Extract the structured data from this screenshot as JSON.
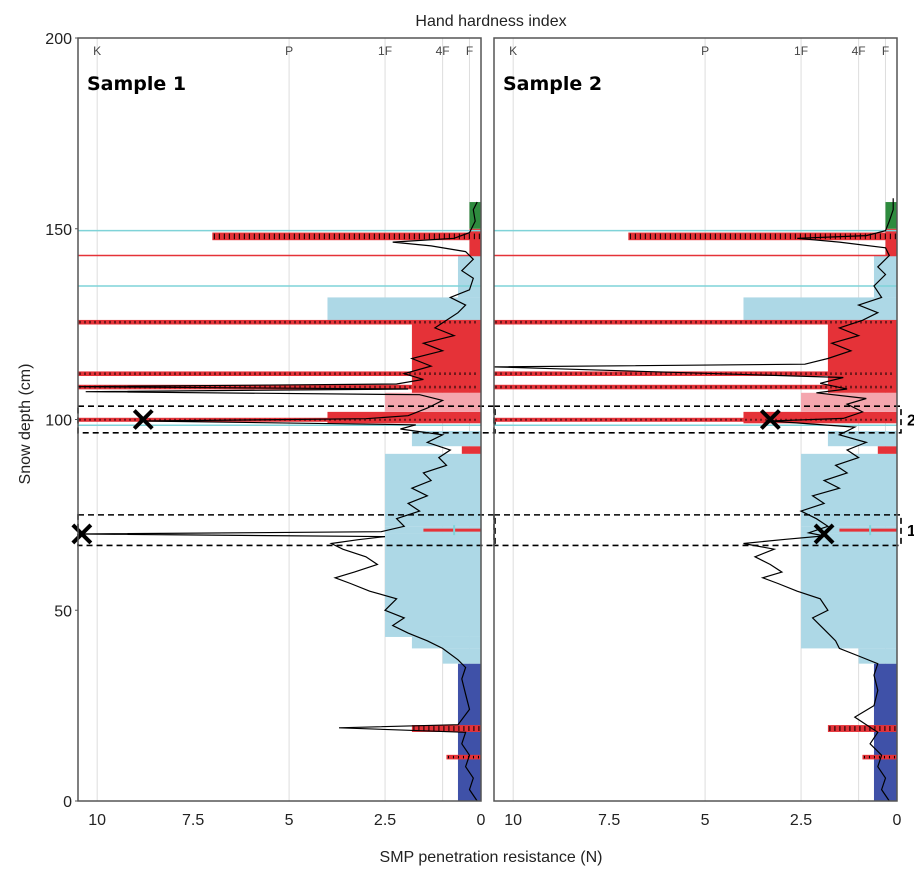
{
  "colors": {
    "melt_form": "#e53238",
    "melt_form_light": "#f4a6ae",
    "rounded": "#add8e6",
    "depth_hoar": "#3f51a8",
    "new_snow": "#2e8b3e",
    "surface_hoar": "#7fd3d8",
    "profile": "#000000",
    "grid": "#dddddd",
    "frame": "#555555"
  },
  "chart_data": [
    {
      "type": "line",
      "panel_title": "Sample 1",
      "title": "Hand hardness index",
      "xlabel": "SMP penetration resistance (N)",
      "ylabel": "Snow depth (cm)",
      "xlim": [
        10.5,
        0
      ],
      "ylim": [
        0,
        200
      ],
      "x_ticks": [
        "10",
        "7.5",
        "5",
        "2.5",
        "0"
      ],
      "y_ticks": [
        "0",
        "50",
        "100",
        "150",
        "200"
      ],
      "hardness_ticks": [
        "K",
        "P",
        "1F",
        "4F",
        "F"
      ],
      "hardness_tick_values": [
        10,
        5,
        2.5,
        1,
        0.3
      ],
      "layers": [
        {
          "bottom": 0,
          "top": 36,
          "hardness": 0.6,
          "type": "depth_hoar"
        },
        {
          "bottom": 36,
          "top": 40,
          "hardness": 1.0,
          "type": "rounded"
        },
        {
          "bottom": 40,
          "top": 43,
          "hardness": 1.8,
          "type": "rounded"
        },
        {
          "bottom": 43,
          "top": 70,
          "hardness": 2.5,
          "type": "rounded"
        },
        {
          "bottom": 70,
          "top": 72,
          "hardness": 2.5,
          "type": "rounded"
        },
        {
          "bottom": 72,
          "top": 91,
          "hardness": 2.5,
          "type": "rounded"
        },
        {
          "bottom": 91,
          "top": 93,
          "hardness": 0.5,
          "type": "melt_form"
        },
        {
          "bottom": 93,
          "top": 97,
          "hardness": 1.8,
          "type": "rounded"
        },
        {
          "bottom": 99,
          "top": 102,
          "hardness": 4.0,
          "type": "melt_form"
        },
        {
          "bottom": 102,
          "top": 107,
          "hardness": 2.5,
          "type": "melt_form_light"
        },
        {
          "bottom": 107,
          "top": 126,
          "hardness": 1.8,
          "type": "melt_form"
        },
        {
          "bottom": 126,
          "top": 132,
          "hardness": 4.0,
          "type": "rounded"
        },
        {
          "bottom": 132,
          "top": 143,
          "hardness": 0.6,
          "type": "rounded"
        },
        {
          "bottom": 143,
          "top": 150,
          "hardness": 0.3,
          "type": "melt_form"
        },
        {
          "bottom": 150,
          "top": 157,
          "hardness": 0.3,
          "type": "new_snow"
        }
      ],
      "ice_layers": [
        {
          "depth": 148,
          "hardness": 7.0,
          "thickness": 2
        },
        {
          "depth": 125.5,
          "hardness": 10.5,
          "thickness": 1.2
        },
        {
          "depth": 112,
          "hardness": 10.5,
          "thickness": 1.2
        },
        {
          "depth": 108.5,
          "hardness": 10.5,
          "thickness": 1.2
        },
        {
          "depth": 100,
          "hardness": 10.5,
          "thickness": 0.9
        },
        {
          "depth": 19,
          "hardness": 1.8,
          "thickness": 1.8
        },
        {
          "depth": 11.5,
          "hardness": 0.9,
          "thickness": 1.2
        }
      ],
      "thin_lines": [
        {
          "depth": 149.5,
          "type": "surface_hoar"
        },
        {
          "depth": 143,
          "type": "melt_form"
        },
        {
          "depth": 135,
          "type": "surface_hoar"
        },
        {
          "depth": 98.5,
          "type": "surface_hoar"
        },
        {
          "depth": 71,
          "type": "melt_form_short"
        }
      ],
      "markers": [
        {
          "x": 8.8,
          "y": 100
        },
        {
          "x": 10.4,
          "y": 70
        }
      ],
      "zones": [
        {
          "bottom": 96.5,
          "top": 103.5,
          "label": ""
        },
        {
          "bottom": 67,
          "top": 75,
          "label": ""
        }
      ],
      "profile": [
        [
          0.1,
          0
        ],
        [
          0.3,
          3
        ],
        [
          0.2,
          6
        ],
        [
          0.4,
          9
        ],
        [
          0.3,
          12
        ],
        [
          0.5,
          15
        ],
        [
          0.4,
          18
        ],
        [
          3.7,
          19.2
        ],
        [
          0.6,
          20
        ],
        [
          0.3,
          24
        ],
        [
          0.4,
          28
        ],
        [
          0.5,
          32
        ],
        [
          0.4,
          35
        ],
        [
          0.6,
          37
        ],
        [
          1.0,
          40
        ],
        [
          1.4,
          42
        ],
        [
          1.9,
          44
        ],
        [
          2.3,
          46
        ],
        [
          2.0,
          48
        ],
        [
          2.5,
          50
        ],
        [
          2.2,
          53
        ],
        [
          2.9,
          55
        ],
        [
          3.4,
          57
        ],
        [
          3.8,
          58.5
        ],
        [
          3.3,
          60
        ],
        [
          2.7,
          62
        ],
        [
          3.0,
          64
        ],
        [
          3.6,
          66
        ],
        [
          3.9,
          67.5
        ],
        [
          3.2,
          68.5
        ],
        [
          2.5,
          69.3
        ],
        [
          10.4,
          70
        ],
        [
          2.6,
          70.6
        ],
        [
          2.0,
          72
        ],
        [
          2.2,
          74
        ],
        [
          1.6,
          76
        ],
        [
          1.9,
          78
        ],
        [
          1.4,
          80
        ],
        [
          1.8,
          82
        ],
        [
          1.3,
          84
        ],
        [
          1.5,
          86
        ],
        [
          0.9,
          88
        ],
        [
          1.1,
          90
        ],
        [
          0.8,
          92
        ],
        [
          1.4,
          94
        ],
        [
          1.0,
          96
        ],
        [
          2.1,
          97.5
        ],
        [
          1.7,
          98.6
        ],
        [
          8.8,
          99.6
        ],
        [
          3.0,
          100.2
        ],
        [
          1.9,
          101
        ],
        [
          1.4,
          103
        ],
        [
          1.0,
          105
        ],
        [
          1.6,
          106.5
        ],
        [
          10.3,
          107.3
        ],
        [
          1.9,
          108
        ],
        [
          10.5,
          108.6
        ],
        [
          2.2,
          109.3
        ],
        [
          1.5,
          110.5
        ],
        [
          2.0,
          112
        ],
        [
          1.3,
          114
        ],
        [
          1.8,
          116
        ],
        [
          1.0,
          118
        ],
        [
          1.5,
          120
        ],
        [
          0.7,
          122
        ],
        [
          1.2,
          124
        ],
        [
          0.9,
          126
        ],
        [
          0.6,
          128
        ],
        [
          0.4,
          130
        ],
        [
          0.8,
          132
        ],
        [
          0.3,
          134
        ],
        [
          0.2,
          137
        ],
        [
          0.5,
          139
        ],
        [
          0.2,
          142
        ],
        [
          0.4,
          144
        ],
        [
          1.3,
          145.5
        ],
        [
          2.3,
          146.5
        ],
        [
          0.7,
          147.5
        ],
        [
          0.3,
          149
        ],
        [
          0.15,
          152
        ],
        [
          0.2,
          155
        ],
        [
          0.1,
          157
        ]
      ]
    },
    {
      "type": "line",
      "panel_title": "Sample 2",
      "title": "",
      "xlabel": "",
      "ylabel": "",
      "xlim": [
        10.5,
        0
      ],
      "ylim": [
        0,
        200
      ],
      "x_ticks": [
        "10",
        "7.5",
        "5",
        "2.5",
        "0"
      ],
      "y_ticks": [],
      "hardness_ticks": [
        "K",
        "P",
        "1F",
        "4F",
        "F"
      ],
      "hardness_tick_values": [
        10,
        5,
        2.5,
        1,
        0.3
      ],
      "layers": [
        {
          "bottom": 0,
          "top": 36,
          "hardness": 0.6,
          "type": "depth_hoar"
        },
        {
          "bottom": 36,
          "top": 40,
          "hardness": 1.0,
          "type": "rounded"
        },
        {
          "bottom": 40,
          "top": 70,
          "hardness": 2.5,
          "type": "rounded"
        },
        {
          "bottom": 70,
          "top": 72,
          "hardness": 2.5,
          "type": "rounded"
        },
        {
          "bottom": 72,
          "top": 91,
          "hardness": 2.5,
          "type": "rounded"
        },
        {
          "bottom": 91,
          "top": 93,
          "hardness": 0.5,
          "type": "melt_form"
        },
        {
          "bottom": 93,
          "top": 97,
          "hardness": 1.8,
          "type": "rounded"
        },
        {
          "bottom": 99,
          "top": 102,
          "hardness": 4.0,
          "type": "melt_form"
        },
        {
          "bottom": 102,
          "top": 107,
          "hardness": 2.5,
          "type": "melt_form_light"
        },
        {
          "bottom": 107,
          "top": 126,
          "hardness": 1.8,
          "type": "melt_form"
        },
        {
          "bottom": 126,
          "top": 132,
          "hardness": 4.0,
          "type": "rounded"
        },
        {
          "bottom": 132,
          "top": 143,
          "hardness": 0.6,
          "type": "rounded"
        },
        {
          "bottom": 143,
          "top": 150,
          "hardness": 0.3,
          "type": "melt_form"
        },
        {
          "bottom": 150,
          "top": 157,
          "hardness": 0.3,
          "type": "new_snow"
        }
      ],
      "ice_layers": [
        {
          "depth": 148,
          "hardness": 7.0,
          "thickness": 2
        },
        {
          "depth": 125.5,
          "hardness": 10.5,
          "thickness": 1.2
        },
        {
          "depth": 112,
          "hardness": 10.5,
          "thickness": 1.2
        },
        {
          "depth": 108.5,
          "hardness": 10.5,
          "thickness": 1.2
        },
        {
          "depth": 100,
          "hardness": 10.5,
          "thickness": 0.9
        },
        {
          "depth": 19,
          "hardness": 1.8,
          "thickness": 1.8
        },
        {
          "depth": 11.5,
          "hardness": 0.9,
          "thickness": 1.2
        }
      ],
      "thin_lines": [
        {
          "depth": 149.5,
          "type": "surface_hoar"
        },
        {
          "depth": 143,
          "type": "melt_form"
        },
        {
          "depth": 135,
          "type": "surface_hoar"
        },
        {
          "depth": 98.5,
          "type": "surface_hoar"
        },
        {
          "depth": 71,
          "type": "melt_form_short"
        }
      ],
      "markers": [
        {
          "x": 3.3,
          "y": 100
        },
        {
          "x": 1.9,
          "y": 70
        }
      ],
      "zones": [
        {
          "bottom": 96.5,
          "top": 103.5,
          "label": "2"
        },
        {
          "bottom": 67,
          "top": 75,
          "label": "1"
        }
      ],
      "profile": [
        [
          0.2,
          0
        ],
        [
          0.4,
          3
        ],
        [
          0.3,
          6
        ],
        [
          0.5,
          9
        ],
        [
          0.4,
          12
        ],
        [
          0.7,
          15
        ],
        [
          0.5,
          18
        ],
        [
          0.8,
          20
        ],
        [
          1.1,
          22
        ],
        [
          0.6,
          25
        ],
        [
          0.5,
          29
        ],
        [
          0.6,
          33
        ],
        [
          0.5,
          36
        ],
        [
          1.0,
          38
        ],
        [
          1.5,
          40
        ],
        [
          1.6,
          42
        ],
        [
          1.9,
          45
        ],
        [
          2.2,
          48
        ],
        [
          1.8,
          50
        ],
        [
          2.0,
          53
        ],
        [
          2.6,
          55
        ],
        [
          3.1,
          57
        ],
        [
          3.5,
          58.5
        ],
        [
          3.0,
          60
        ],
        [
          3.3,
          62
        ],
        [
          3.7,
          64
        ],
        [
          3.2,
          66
        ],
        [
          4.0,
          67.5
        ],
        [
          2.9,
          68.6
        ],
        [
          1.9,
          69.5
        ],
        [
          2.3,
          70.3
        ],
        [
          1.8,
          72
        ],
        [
          2.1,
          74
        ],
        [
          2.5,
          76
        ],
        [
          1.9,
          78
        ],
        [
          2.2,
          80
        ],
        [
          1.5,
          82
        ],
        [
          1.9,
          84
        ],
        [
          1.3,
          86
        ],
        [
          1.6,
          88
        ],
        [
          1.0,
          90
        ],
        [
          1.3,
          92
        ],
        [
          0.8,
          94
        ],
        [
          1.5,
          96
        ],
        [
          1.1,
          98
        ],
        [
          3.3,
          99.6
        ],
        [
          1.4,
          100.3
        ],
        [
          0.9,
          102
        ],
        [
          1.3,
          104
        ],
        [
          0.8,
          105.5
        ],
        [
          2.1,
          107
        ],
        [
          1.3,
          108
        ],
        [
          2.0,
          109.5
        ],
        [
          1.4,
          111
        ],
        [
          10.5,
          113.8
        ],
        [
          2.4,
          114.5
        ],
        [
          1.8,
          116
        ],
        [
          1.2,
          118
        ],
        [
          1.7,
          120
        ],
        [
          1.0,
          122
        ],
        [
          1.5,
          124
        ],
        [
          0.9,
          126
        ],
        [
          0.5,
          128
        ],
        [
          1.0,
          130
        ],
        [
          0.4,
          132
        ],
        [
          0.6,
          135
        ],
        [
          0.3,
          138
        ],
        [
          0.5,
          140
        ],
        [
          0.2,
          143
        ],
        [
          0.3,
          145
        ],
        [
          1.5,
          146.5
        ],
        [
          2.6,
          147.5
        ],
        [
          0.8,
          148.2
        ],
        [
          0.3,
          149.5
        ],
        [
          0.2,
          152
        ],
        [
          0.1,
          155
        ],
        [
          0.1,
          158
        ]
      ]
    }
  ]
}
